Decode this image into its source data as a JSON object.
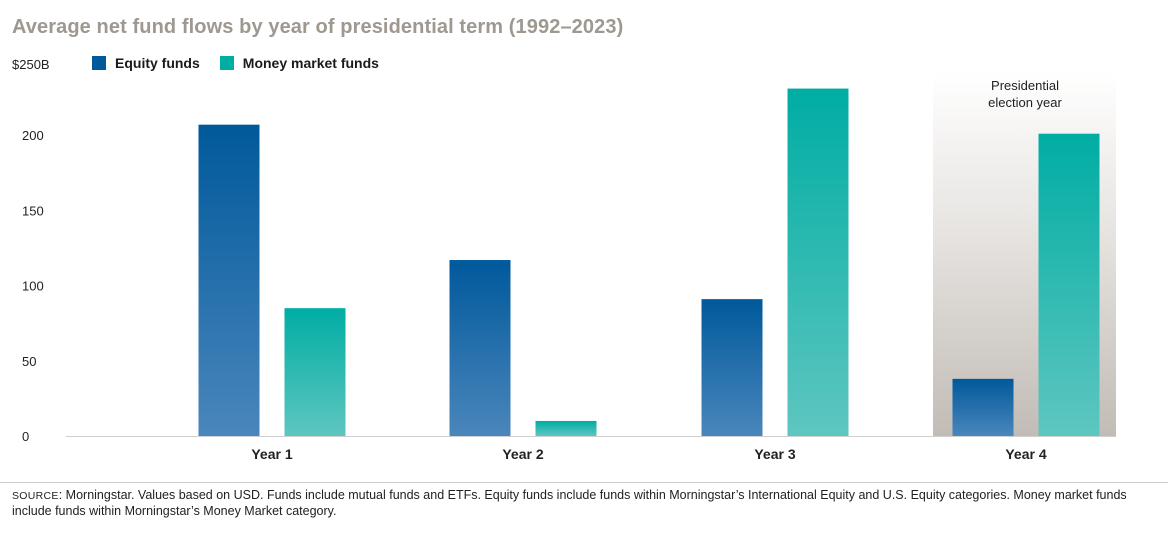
{
  "chart_data": {
    "type": "bar",
    "title": "Average net fund flows by year of presidential term (1992–2023)",
    "y_top_label": "$250B",
    "categories": [
      "Year 1",
      "Year 2",
      "Year 3",
      "Year 4"
    ],
    "yticks": [
      "0",
      "50",
      "100",
      "150",
      "200"
    ],
    "ylim": [
      0,
      250
    ],
    "series": [
      {
        "name": "Equity funds",
        "values": [
          207,
          117,
          91,
          38
        ]
      },
      {
        "name": "Money market funds",
        "values": [
          85,
          10,
          231,
          201
        ]
      }
    ],
    "annotation": {
      "line1": "Presidential",
      "line2": "election year",
      "category": "Year 4"
    },
    "colors": {
      "equity_top": "#00599b",
      "equity_bottom": "#4a86bc",
      "mmf_top": "#00ada3",
      "mmf_bottom": "#5ec6c0",
      "highlight": "#c9c4bf"
    },
    "legend_position": "top-left",
    "grid": false
  },
  "footnote": {
    "label": "SOURCE",
    "text": ": Morningstar. Values based on USD. Funds include mutual funds and ETFs. Equity funds include funds within Morningstar’s International Equity and U.S. Equity categories. Money market funds include funds within Morningstar’s Money Market category."
  }
}
